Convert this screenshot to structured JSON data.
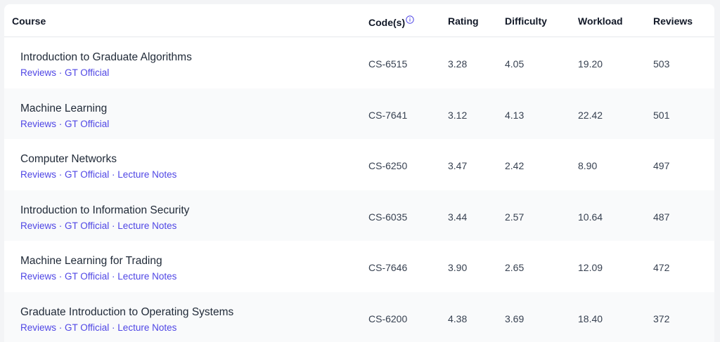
{
  "headers": {
    "course": "Course",
    "codes": "Code(s)",
    "rating": "Rating",
    "difficulty": "Difficulty",
    "workload": "Workload",
    "reviews": "Reviews"
  },
  "icons": {
    "codes_info": "info-circle-icon"
  },
  "colors": {
    "link": "#4f46e5",
    "row_alt": "#f9fafb"
  },
  "link_separator": " · ",
  "rows": [
    {
      "name": "Introduction to Graduate Algorithms",
      "links": [
        "Reviews",
        "GT Official"
      ],
      "code": "CS-6515",
      "rating": "3.28",
      "difficulty": "4.05",
      "workload": "19.20",
      "reviews": "503"
    },
    {
      "name": "Machine Learning",
      "links": [
        "Reviews",
        "GT Official"
      ],
      "code": "CS-7641",
      "rating": "3.12",
      "difficulty": "4.13",
      "workload": "22.42",
      "reviews": "501"
    },
    {
      "name": "Computer Networks",
      "links": [
        "Reviews",
        "GT Official",
        "Lecture Notes"
      ],
      "code": "CS-6250",
      "rating": "3.47",
      "difficulty": "2.42",
      "workload": "8.90",
      "reviews": "497"
    },
    {
      "name": "Introduction to Information Security",
      "links": [
        "Reviews",
        "GT Official",
        "Lecture Notes"
      ],
      "code": "CS-6035",
      "rating": "3.44",
      "difficulty": "2.57",
      "workload": "10.64",
      "reviews": "487"
    },
    {
      "name": "Machine Learning for Trading",
      "links": [
        "Reviews",
        "GT Official",
        "Lecture Notes"
      ],
      "code": "CS-7646",
      "rating": "3.90",
      "difficulty": "2.65",
      "workload": "12.09",
      "reviews": "472"
    },
    {
      "name": "Graduate Introduction to Operating Systems",
      "links": [
        "Reviews",
        "GT Official",
        "Lecture Notes"
      ],
      "code": "CS-6200",
      "rating": "4.38",
      "difficulty": "3.69",
      "workload": "18.40",
      "reviews": "372"
    }
  ]
}
